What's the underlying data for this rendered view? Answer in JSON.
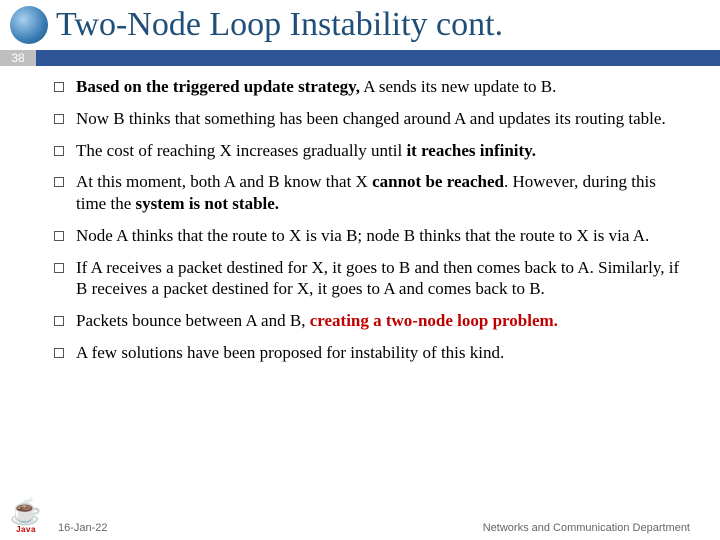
{
  "slide_number": "38",
  "title": "Two-Node Loop Instability cont.",
  "title_color": "#1f4e79",
  "bar_color": "#2f5597",
  "badge_bg": "#bfbfbf",
  "bullets": [
    {
      "html": "<span class='bold'>Based on the triggered update strategy,</span> A sends its new update to B."
    },
    {
      "html": "Now B thinks that something has been changed around A and updates its routing table."
    },
    {
      "html": "The cost of reaching X increases gradually until <span class='bold'>it reaches infinity.</span>"
    },
    {
      "html": "At this moment, both A and B know that X <span class='bold'>cannot be reached</span>. However, during this time the <span class='bold'>system is not stable.</span>"
    },
    {
      "html": "Node A thinks that the route to X is via B; node B thinks that the route to X is via A."
    },
    {
      "html": "If A receives a packet destined for X, it goes to B and then comes back to A. Similarly, if B receives a packet destined for X, it goes to A and comes back to B."
    },
    {
      "html": "Packets bounce between A and B, <span class='red-bold'>creating a two-node loop problem.</span>"
    },
    {
      "html": "A few solutions have been proposed for instability of this kind."
    }
  ],
  "footer": {
    "date": "16-Jan-22",
    "dept": "Networks and Communication Department"
  },
  "java": {
    "cup": "☕",
    "word": "Java"
  }
}
